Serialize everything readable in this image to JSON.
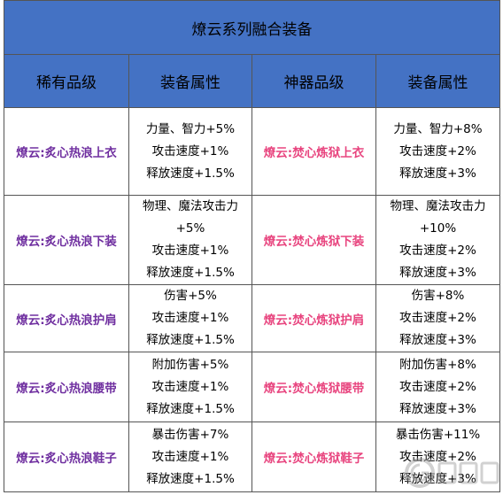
{
  "title": "燎云系列融合装备",
  "headers": [
    "稀有品级",
    "装备属性",
    "神器品级",
    "装备属性"
  ],
  "rows": [
    {
      "rare_name": "燎云:炙心热浪上衣",
      "rare_attrs": [
        "力量、智力+5%",
        "攻击速度+1%",
        "释放速度+1.5%"
      ],
      "art_name": "燎云:焚心炼狱上衣",
      "art_attrs": [
        "力量、智力+8%",
        "攻击速度+2%",
        "释放速度+3%"
      ]
    },
    {
      "rare_name": "燎云:炙心热浪下装",
      "rare_attrs": [
        "物理、魔法攻击力",
        "+5%",
        "攻击速度+1%",
        "释放速度+1.5%"
      ],
      "art_name": "燎云:焚心炼狱下装",
      "art_attrs": [
        "物理、魔法攻击力",
        "+10%",
        "攻击速度+2%",
        "释放速度+3%"
      ]
    },
    {
      "rare_name": "燎云:炙心热浪护肩",
      "rare_attrs": [
        "伤害+5%",
        "攻击速度+1%",
        "释放速度+1.5%"
      ],
      "art_name": "燎云:焚心炼狱护肩",
      "art_attrs": [
        "伤害+8%",
        "攻击速度+2%",
        "释放速度+3%"
      ]
    },
    {
      "rare_name": "燎云:炙心热浪腰带",
      "rare_attrs": [
        "附加伤害+5%",
        "攻击速度+1%",
        "释放速度+1.5%"
      ],
      "art_name": "燎云:焚心炼狱腰带",
      "art_attrs": [
        "附加伤害+8%",
        "攻击速度+2%",
        "释放速度+3%"
      ]
    },
    {
      "rare_name": "燎云:炙心热浪鞋子",
      "rare_attrs": [
        "暴击伤害+7%",
        "攻击速度+1%",
        "释放速度+1.5%"
      ],
      "art_name": "燎云:焚心炼狱鞋子",
      "art_attrs": [
        "暴击伤害+11%",
        "攻击速度+2%",
        "释放速度+3%"
      ]
    }
  ],
  "watermark_text": "",
  "colors": {
    "header_bg": "#4472c4",
    "rare_name": "#7030a0",
    "artifact_name": "#e8457f",
    "border": "#555555"
  }
}
